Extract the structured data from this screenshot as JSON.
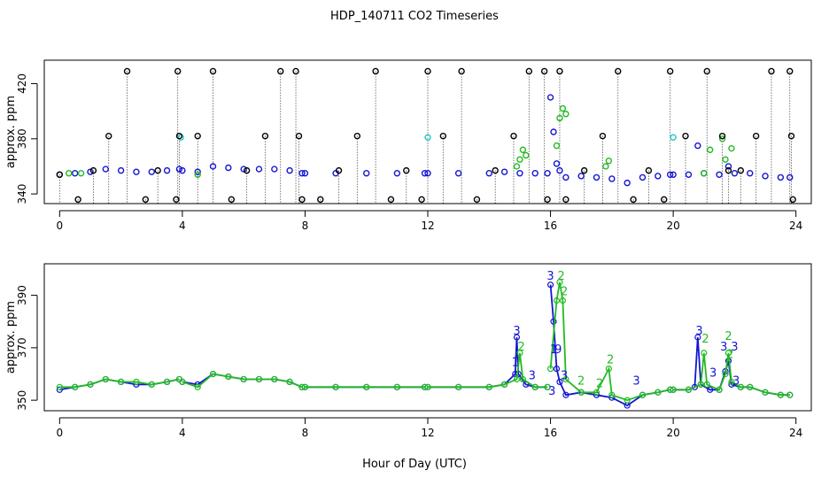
{
  "title": "HDP_140711  CO2 Timeseries",
  "xlabel": "Hour of Day (UTC)",
  "colors": {
    "black": "#000000",
    "blue": "#1515d5",
    "green": "#22bb22",
    "cyan": "#20c8c8",
    "frame": "#000000"
  },
  "chart_data": [
    {
      "type": "scatter",
      "panel": "top",
      "ylabel": "approx. ppm",
      "xlim": [
        -0.5,
        24.5
      ],
      "ylim": [
        333,
        437
      ],
      "x_ticks": [
        0,
        4,
        8,
        12,
        16,
        20,
        24
      ],
      "y_ticks": [
        340,
        380,
        420
      ],
      "grid": false,
      "series": [
        {
          "marker": "circle",
          "color": "blue",
          "segments": [
            {
              "x": [
                0,
                0.5,
                1.0,
                1.5,
                2.0,
                2.5,
                3.0,
                3.5,
                3.9
              ],
              "y": [
                354,
                355,
                356,
                358,
                357,
                356,
                356,
                357,
                358
              ]
            },
            {
              "x": [
                4.0,
                4.5,
                5.0,
                5.5,
                6.0,
                6.5,
                7.0,
                7.5,
                7.9
              ],
              "y": [
                357,
                356,
                360,
                359,
                358,
                358,
                358,
                357,
                355
              ]
            },
            {
              "x": [
                8.0,
                9.0,
                10.0,
                11.0,
                11.9
              ],
              "y": [
                355,
                355,
                355,
                355,
                355
              ]
            },
            {
              "x": [
                12.0,
                13.0,
                14.0,
                14.5,
                15.0,
                15.5,
                15.9
              ],
              "y": [
                355,
                355,
                355,
                356,
                355,
                355,
                355
              ]
            },
            {
              "x": [
                16.0,
                16.1,
                16.2,
                16.3,
                16.5,
                17.0,
                17.5,
                18.0,
                18.5,
                19.0,
                19.5,
                19.9
              ],
              "y": [
                410,
                385,
                362,
                357,
                352,
                353,
                352,
                351,
                348,
                352,
                353,
                354
              ]
            },
            {
              "x": [
                20.0,
                20.5,
                20.8,
                21.0,
                21.5,
                21.8,
                22.0,
                22.5,
                23.0,
                23.5,
                23.8
              ],
              "y": [
                354,
                354,
                375,
                355,
                354,
                360,
                355,
                355,
                353,
                352,
                352
              ]
            }
          ]
        },
        {
          "marker": "circle",
          "color": "green",
          "points": {
            "x": [
              0.3,
              0.7,
              4.5,
              14.9,
              15.0,
              15.1,
              15.2,
              16.2,
              16.3,
              16.4,
              16.5,
              17.8,
              17.9,
              21.0,
              21.2,
              21.6,
              21.7,
              21.9
            ],
            "y": [
              355,
              355,
              354,
              360,
              365,
              372,
              368,
              375,
              395,
              402,
              398,
              360,
              364,
              355,
              372,
              380,
              365,
              373
            ]
          }
        },
        {
          "marker": "circle",
          "color": "cyan",
          "points": {
            "x": [
              3.95,
              12.0,
              20.0
            ],
            "y": [
              381,
              381,
              381
            ]
          }
        },
        {
          "marker": "circle",
          "color": "black",
          "points": {
            "x": [
              0,
              0.6,
              1.1,
              1.6,
              2.2,
              2.8,
              3.2,
              3.8,
              3.85,
              3.9,
              4.5,
              5.0,
              5.6,
              6.1,
              6.7,
              7.2,
              7.7,
              7.8,
              7.9,
              8.5,
              9.1,
              9.7,
              10.3,
              10.8,
              11.3,
              11.8,
              12.0,
              12.5,
              13.1,
              13.6,
              14.2,
              14.8,
              15.3,
              15.8,
              15.9,
              16.3,
              16.5,
              17.1,
              17.7,
              18.2,
              18.7,
              19.2,
              19.7,
              19.9,
              20.4,
              21.1,
              21.6,
              21.8,
              22.2,
              22.7,
              23.2,
              23.8,
              23.85,
              23.9
            ],
            "y": [
              354,
              336,
              357,
              382,
              429,
              336,
              357,
              336,
              429,
              382,
              382,
              429,
              336,
              357,
              382,
              429,
              429,
              382,
              336,
              336,
              357,
              382,
              429,
              336,
              357,
              336,
              429,
              382,
              429,
              336,
              357,
              382,
              429,
              429,
              336,
              429,
              336,
              357,
              382,
              429,
              336,
              357,
              336,
              429,
              382,
              429,
              382,
              357,
              357,
              382,
              429,
              429,
              382,
              336
            ]
          }
        }
      ]
    },
    {
      "type": "line",
      "panel": "bottom",
      "ylabel": "approx. ppm",
      "xlim": [
        -0.5,
        24.5
      ],
      "ylim": [
        346,
        402
      ],
      "x_ticks": [
        0,
        4,
        8,
        12,
        16,
        20,
        24
      ],
      "y_ticks": [
        350,
        370,
        390
      ],
      "grid": false,
      "series": [
        {
          "color": "blue",
          "marker": "circle",
          "segments": [
            {
              "x": [
                0,
                0.5,
                1.0,
                1.5,
                2.0,
                2.5,
                3.0,
                3.5,
                3.9
              ],
              "y": [
                354,
                355,
                356,
                358,
                357,
                356,
                356,
                357,
                358
              ]
            },
            {
              "x": [
                4.0,
                4.5,
                5.0,
                5.5,
                6.0,
                6.5,
                7.0,
                7.5,
                7.9
              ],
              "y": [
                357,
                356,
                360,
                359,
                358,
                358,
                358,
                357,
                355
              ]
            },
            {
              "x": [
                8.0,
                9.0,
                10.0,
                11.0,
                11.9
              ],
              "y": [
                355,
                355,
                355,
                355,
                355
              ]
            },
            {
              "x": [
                12.0,
                13.0,
                14.0,
                14.5,
                14.85,
                14.9,
                14.95,
                15.2,
                15.5,
                15.9
              ],
              "y": [
                355,
                355,
                355,
                356,
                360,
                374,
                360,
                356,
                355,
                355
              ]
            },
            {
              "x": [
                16.0,
                16.1,
                16.2,
                16.3,
                16.5,
                17.0,
                17.5,
                18.0,
                18.5,
                19.0,
                19.5,
                19.9
              ],
              "y": [
                394,
                380,
                362,
                357,
                352,
                353,
                352,
                351,
                348,
                352,
                353,
                354
              ]
            },
            {
              "x": [
                20.0,
                20.5,
                20.7,
                20.8,
                20.9,
                21.2,
                21.5,
                21.7,
                21.8,
                21.9,
                22.2,
                22.5,
                23.0,
                23.5,
                23.8
              ],
              "y": [
                354,
                354,
                355,
                374,
                356,
                354,
                354,
                361,
                365,
                356,
                355,
                355,
                353,
                352,
                352
              ]
            }
          ]
        },
        {
          "color": "green",
          "marker": "circle",
          "segments": [
            {
              "x": [
                0,
                0.5,
                1.0,
                1.5,
                2.0,
                2.5,
                3.0,
                3.5,
                3.9
              ],
              "y": [
                355,
                355,
                356,
                358,
                357,
                357,
                356,
                357,
                358
              ]
            },
            {
              "x": [
                4.0,
                4.5,
                5.0,
                5.5,
                6.0,
                6.5,
                7.0,
                7.5,
                7.9
              ],
              "y": [
                357,
                355,
                360,
                359,
                358,
                358,
                358,
                357,
                355
              ]
            },
            {
              "x": [
                8.0,
                9.0,
                10.0,
                11.0,
                11.9
              ],
              "y": [
                355,
                355,
                355,
                355,
                355
              ]
            },
            {
              "x": [
                12.0,
                13.0,
                14.0,
                14.5,
                14.9,
                15.0,
                15.1,
                15.5,
                15.9
              ],
              "y": [
                355,
                355,
                355,
                356,
                358,
                368,
                358,
                355,
                355
              ]
            },
            {
              "x": [
                16.0,
                16.2,
                16.3,
                16.4,
                16.5,
                17.0,
                17.5,
                17.9,
                18.0,
                18.5,
                19.0,
                19.5,
                19.9
              ],
              "y": [
                362,
                388,
                395,
                388,
                358,
                353,
                353,
                362,
                352,
                350,
                352,
                353,
                354
              ]
            },
            {
              "x": [
                20.0,
                20.5,
                20.9,
                21.0,
                21.1,
                21.5,
                21.7,
                21.8,
                21.9,
                22.2,
                22.5,
                23.0,
                23.5,
                23.8
              ],
              "y": [
                354,
                354,
                356,
                368,
                356,
                354,
                360,
                368,
                357,
                355,
                355,
                353,
                352,
                352
              ]
            }
          ]
        }
      ],
      "annotations": [
        {
          "text": "3",
          "x": 14.9,
          "y": 375,
          "color": "blue"
        },
        {
          "text": "1",
          "x": 14.85,
          "y": 363,
          "color": "blue"
        },
        {
          "text": "2",
          "x": 15.05,
          "y": 369,
          "color": "green"
        },
        {
          "text": "3",
          "x": 15.4,
          "y": 358,
          "color": "blue"
        },
        {
          "text": "3",
          "x": 16.0,
          "y": 396,
          "color": "blue"
        },
        {
          "text": "2",
          "x": 16.35,
          "y": 396,
          "color": "green"
        },
        {
          "text": "2",
          "x": 16.45,
          "y": 390,
          "color": "green"
        },
        {
          "text": "1",
          "x": 16.1,
          "y": 368,
          "color": "blue"
        },
        {
          "text": "9",
          "x": 16.25,
          "y": 368,
          "color": "blue"
        },
        {
          "text": "3",
          "x": 16.45,
          "y": 358,
          "color": "blue"
        },
        {
          "text": "3",
          "x": 16.05,
          "y": 352,
          "color": "blue"
        },
        {
          "text": "2",
          "x": 17.0,
          "y": 356,
          "color": "green"
        },
        {
          "text": "2",
          "x": 17.6,
          "y": 355,
          "color": "green"
        },
        {
          "text": "2",
          "x": 17.95,
          "y": 364,
          "color": "green"
        },
        {
          "text": "3",
          "x": 18.8,
          "y": 356,
          "color": "blue"
        },
        {
          "text": "3",
          "x": 20.85,
          "y": 375,
          "color": "blue"
        },
        {
          "text": "2",
          "x": 21.05,
          "y": 372,
          "color": "green"
        },
        {
          "text": "3",
          "x": 21.3,
          "y": 359,
          "color": "blue"
        },
        {
          "text": "2",
          "x": 21.8,
          "y": 373,
          "color": "green"
        },
        {
          "text": "3",
          "x": 21.65,
          "y": 369,
          "color": "blue"
        },
        {
          "text": "2",
          "x": 21.85,
          "y": 366,
          "color": "green"
        },
        {
          "text": "3",
          "x": 22.0,
          "y": 369,
          "color": "blue"
        },
        {
          "text": "3",
          "x": 22.05,
          "y": 356,
          "color": "blue"
        }
      ]
    }
  ]
}
